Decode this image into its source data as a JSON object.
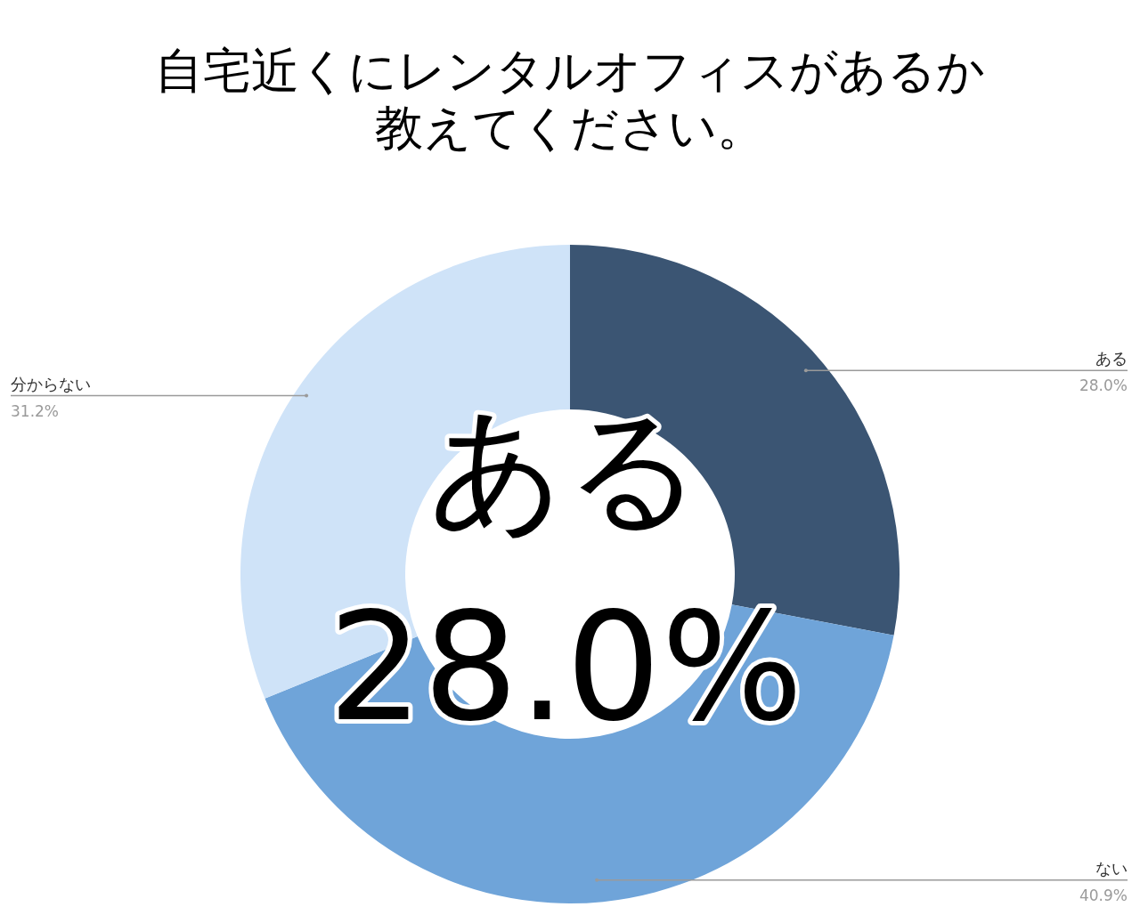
{
  "chart_data": {
    "type": "donut",
    "title": "自宅近くにレンタルオフィスがあるか教えてください。",
    "categories": [
      "ある",
      "ない",
      "分からない"
    ],
    "values": [
      28.0,
      40.9,
      31.2
    ],
    "value_labels": [
      "28.0%",
      "40.9%",
      "31.2%"
    ],
    "colors": [
      "#3b5573",
      "#6fa4d9",
      "#cfe3f8"
    ],
    "annotations": [
      "ある",
      "28.0%"
    ],
    "legend": false
  }
}
